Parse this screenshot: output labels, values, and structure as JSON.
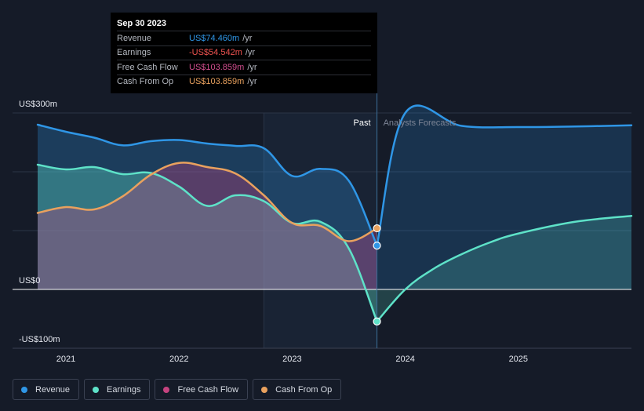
{
  "tooltip": {
    "date": "Sep 30 2023",
    "rows": [
      {
        "label": "Revenue",
        "value": "US$74.460m",
        "unit": "/yr",
        "color": "#2f96e6"
      },
      {
        "label": "Earnings",
        "value": "-US$54.542m",
        "unit": "/yr",
        "color": "#ef5350"
      },
      {
        "label": "Free Cash Flow",
        "value": "US$103.859m",
        "unit": "/yr",
        "color": "#d24e8e"
      },
      {
        "label": "Cash From Op",
        "value": "US$103.859m",
        "unit": "/yr",
        "color": "#e9a15e"
      }
    ]
  },
  "legend": [
    {
      "label": "Revenue",
      "color": "#2f96e6"
    },
    {
      "label": "Earnings",
      "color": "#5ee2c8"
    },
    {
      "label": "Free Cash Flow",
      "color": "#c5437f"
    },
    {
      "label": "Cash From Op",
      "color": "#e9a15e"
    }
  ],
  "chart_data": {
    "type": "line",
    "title": "",
    "xlabel": "",
    "ylabel": "",
    "ylim": [
      -100,
      300
    ],
    "xlim": [
      2020.75,
      2026.0
    ],
    "y_ticks": [
      {
        "value": 300,
        "label": "US$300m"
      },
      {
        "value": 0,
        "label": "US$0"
      },
      {
        "value": -100,
        "label": "-US$100m"
      }
    ],
    "x_ticks": [
      {
        "value": 2021.0,
        "label": "2021"
      },
      {
        "value": 2022.0,
        "label": "2022"
      },
      {
        "value": 2023.0,
        "label": "2023"
      },
      {
        "value": 2024.0,
        "label": "2024"
      },
      {
        "value": 2025.0,
        "label": "2025"
      }
    ],
    "past_start": 2022.75,
    "forecast_start": 2023.75,
    "section_labels": {
      "past": "Past",
      "forecast": "Analysts Forecasts"
    },
    "series": [
      {
        "name": "Revenue",
        "color": "#2f96e6",
        "fill": true,
        "x": [
          2020.75,
          2021.0,
          2021.25,
          2021.5,
          2021.75,
          2022.0,
          2022.25,
          2022.5,
          2022.75,
          2023.0,
          2023.25,
          2023.5,
          2023.75
        ],
        "values": [
          280,
          268,
          258,
          245,
          252,
          254,
          248,
          244,
          240,
          193,
          205,
          185,
          74.5
        ]
      },
      {
        "name": "Revenue Forecast",
        "color": "#2f96e6",
        "fill": true,
        "x": [
          2023.75,
          2024.0,
          2024.5,
          2025.0,
          2025.5,
          2026.0
        ],
        "values": [
          74.5,
          300,
          278,
          276,
          277,
          279
        ]
      },
      {
        "name": "Earnings",
        "color": "#5ee2c8",
        "fill": true,
        "x": [
          2020.75,
          2021.0,
          2021.25,
          2021.5,
          2021.75,
          2022.0,
          2022.25,
          2022.5,
          2022.75,
          2023.0,
          2023.25,
          2023.5,
          2023.75
        ],
        "values": [
          212,
          204,
          208,
          196,
          198,
          175,
          142,
          160,
          150,
          113,
          115,
          70,
          -54.5
        ]
      },
      {
        "name": "Earnings Forecast",
        "color": "#5ee2c8",
        "fill": true,
        "x": [
          2023.75,
          2024.0,
          2024.25,
          2024.5,
          2024.75,
          2025.0,
          2025.5,
          2026.0
        ],
        "values": [
          -54.5,
          0,
          35,
          60,
          80,
          95,
          115,
          125
        ]
      },
      {
        "name": "Free Cash Flow",
        "color": "#c5437f",
        "fill": true,
        "x": [
          2020.75,
          2021.0,
          2021.25,
          2021.5,
          2021.75,
          2022.0,
          2022.25,
          2022.5,
          2022.75,
          2023.0,
          2023.25,
          2023.5,
          2023.75
        ],
        "values": [
          130,
          140,
          136,
          158,
          195,
          215,
          208,
          197,
          160,
          113,
          108,
          82,
          103.9
        ]
      },
      {
        "name": "Cash From Op",
        "color": "#e9a15e",
        "fill": false,
        "x": [
          2020.75,
          2021.0,
          2021.25,
          2021.5,
          2021.75,
          2022.0,
          2022.25,
          2022.5,
          2022.75,
          2023.0,
          2023.25,
          2023.5,
          2023.75
        ],
        "values": [
          130,
          140,
          136,
          158,
          195,
          215,
          208,
          197,
          160,
          113,
          108,
          82,
          103.9
        ]
      }
    ],
    "markers": [
      {
        "series": "Revenue",
        "x": 2023.75,
        "value": 74.5
      },
      {
        "series": "Earnings",
        "x": 2023.75,
        "value": -54.5
      },
      {
        "series": "Cash From Op",
        "x": 2023.75,
        "value": 103.9
      }
    ]
  }
}
